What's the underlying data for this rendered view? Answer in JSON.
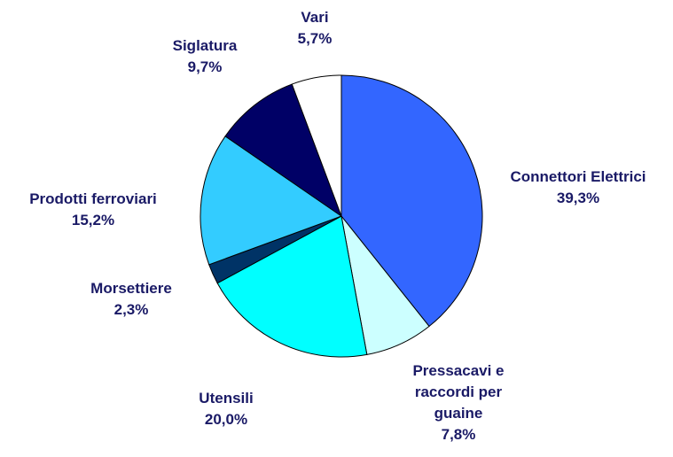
{
  "chart_data": {
    "type": "pie",
    "categories": [
      "Connettori Elettrici",
      "Pressacavi e raccordi per guaine",
      "Utensili",
      "Morsettiere",
      "Prodotti ferroviari",
      "Siglatura",
      "Vari"
    ],
    "values": [
      39.3,
      7.8,
      20.0,
      2.3,
      15.2,
      9.7,
      5.7
    ],
    "value_labels": [
      "39,3%",
      "7,8%",
      "20,0%",
      "2,3%",
      "15,2%",
      "9,7%",
      "5,7%"
    ],
    "colors": [
      "#3366ff",
      "#ccffff",
      "#00ffff",
      "#003366",
      "#33ccff",
      "#000066",
      "#ffffff"
    ]
  }
}
